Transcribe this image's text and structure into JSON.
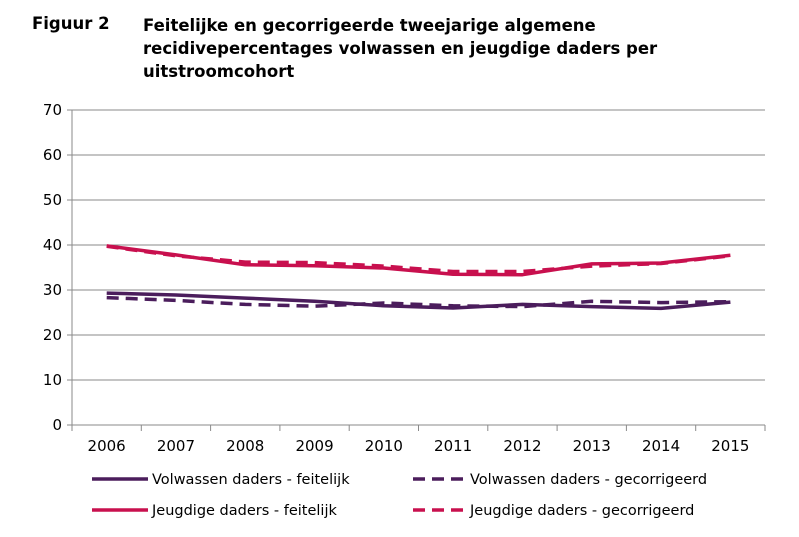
{
  "figure": {
    "label": "Figuur 2",
    "title": "Feitelijke en gecorrigeerde tweejarige algemene recidivepercentages volwassen en jeugdige daders per uitstroomcohort"
  },
  "chart_data": {
    "type": "line",
    "x": [
      "2006",
      "2007",
      "2008",
      "2009",
      "2010",
      "2011",
      "2012",
      "2013",
      "2014",
      "2015"
    ],
    "ylim": [
      0,
      70
    ],
    "yticks": [
      0,
      10,
      20,
      30,
      40,
      50,
      60,
      70
    ],
    "grid": true,
    "legend_position": "bottom",
    "series": [
      {
        "name": "Volwassen daders - feitelijk",
        "color": "#4b1d5c",
        "dash": false,
        "values": [
          29.3,
          28.9,
          28.2,
          27.5,
          26.5,
          26.0,
          26.8,
          26.3,
          25.9,
          27.3
        ]
      },
      {
        "name": "Volwassen daders - gecorrigeerd",
        "color": "#4b1d5c",
        "dash": true,
        "values": [
          28.3,
          27.7,
          26.8,
          26.4,
          27.1,
          26.5,
          26.3,
          27.5,
          27.2,
          27.4
        ]
      },
      {
        "name": "Jeugdige daders - feitelijk",
        "color": "#c8104e",
        "dash": false,
        "values": [
          39.8,
          37.8,
          35.6,
          35.4,
          34.9,
          33.5,
          33.4,
          35.8,
          36.0,
          37.7
        ]
      },
      {
        "name": "Jeugdige daders - gecorrigeerd",
        "color": "#c8104e",
        "dash": true,
        "values": [
          39.7,
          37.6,
          36.2,
          36.1,
          35.3,
          34.1,
          34.1,
          35.3,
          35.9,
          37.6
        ]
      }
    ]
  }
}
